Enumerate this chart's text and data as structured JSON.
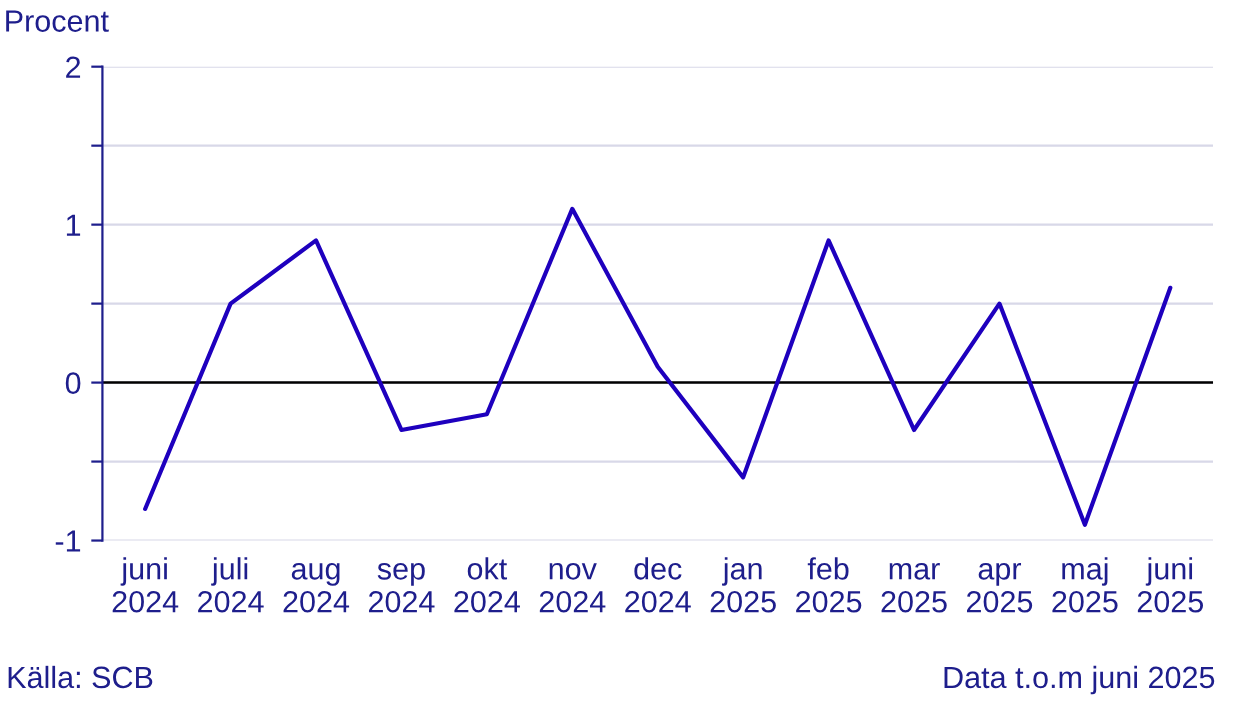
{
  "chart_data": {
    "type": "line",
    "ylabel": "Procent",
    "categories": [
      "juni\n2024",
      "juli\n2024",
      "aug\n2024",
      "sep\n2024",
      "okt\n2024",
      "nov\n2024",
      "dec\n2024",
      "jan\n2025",
      "feb\n2025",
      "mar\n2025",
      "apr\n2025",
      "maj\n2025",
      "juni\n2025"
    ],
    "series": [
      {
        "color": "#1e00be",
        "values": [
          -0.8,
          0.5,
          0.9,
          -0.3,
          -0.2,
          1.1,
          0.1,
          -0.6,
          0.9,
          -0.3,
          0.5,
          -0.9,
          0.6
        ]
      }
    ],
    "ylim": [
      -1,
      2
    ],
    "yticks": [
      -1,
      {
        "value": -0.5,
        "label": null
      },
      0,
      {
        "value": 0.5,
        "label": null
      },
      1,
      {
        "value": 1.5,
        "label": null
      },
      2
    ],
    "grid": "y",
    "ref_lines": [
      {
        "axis": "y",
        "value": 0,
        "color": "#000000"
      }
    ],
    "annotations": [
      "Källa: SCB",
      "Data t.o.m juni 2025"
    ]
  }
}
